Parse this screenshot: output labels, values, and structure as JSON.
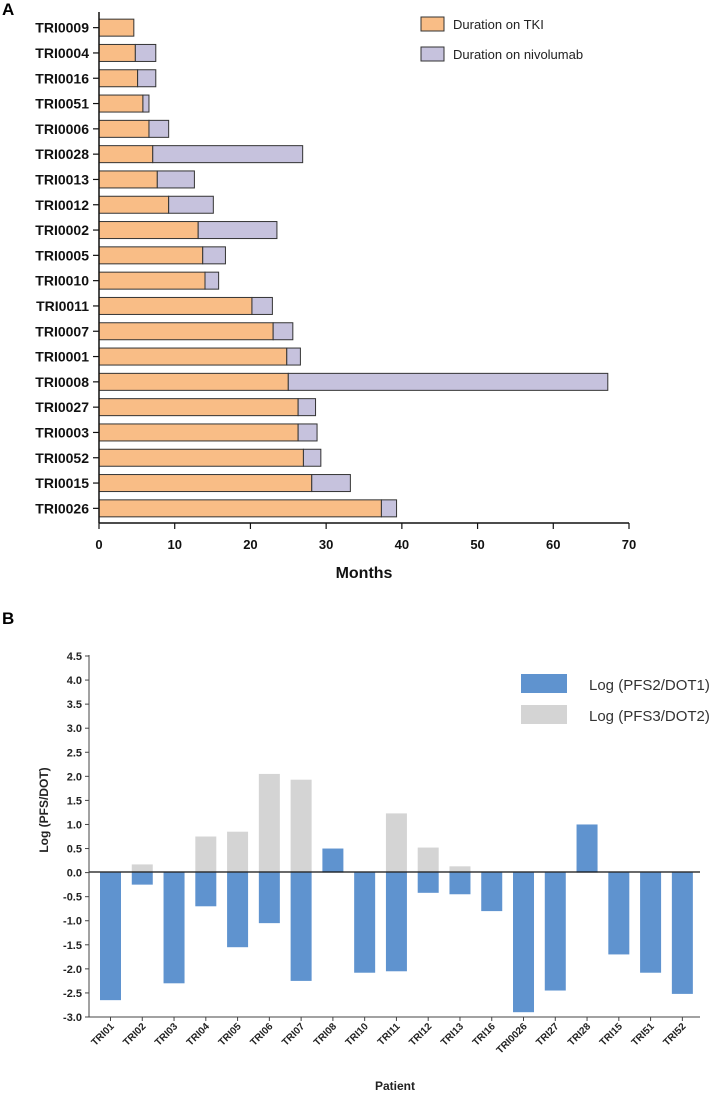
{
  "panels": {
    "a": "A",
    "b": "B"
  },
  "colors": {
    "tki": "#f9bd86",
    "nivo": "#c6c2dd",
    "pfs2": "#5f93cf",
    "pfs3": "#d4d4d4",
    "edge": "#333333"
  },
  "chart_data": [
    {
      "type": "bar",
      "orientation": "horizontal",
      "stacked": true,
      "categories": [
        "TRI0009",
        "TRI0004",
        "TRI0016",
        "TRI0051",
        "TRI0006",
        "TRI0028",
        "TRI0013",
        "TRI0012",
        "TRI0002",
        "TRI0005",
        "TRI0010",
        "TRI0011",
        "TRI0007",
        "TRI0001",
        "TRI0008",
        "TRI0027",
        "TRI0003",
        "TRI0052",
        "TRI0015",
        "TRI0026"
      ],
      "series": [
        {
          "name": "Duration on TKI",
          "values": [
            4.6,
            4.8,
            5.1,
            5.8,
            6.6,
            7.1,
            7.7,
            9.2,
            13.1,
            13.7,
            14.0,
            20.2,
            23.0,
            24.8,
            25.0,
            26.3,
            26.3,
            27.0,
            28.1,
            37.3
          ]
        },
        {
          "name": "Duration on nivolumab",
          "values": [
            0,
            2.7,
            2.4,
            0.8,
            2.6,
            19.8,
            4.9,
            5.9,
            10.4,
            3.0,
            1.8,
            2.7,
            2.6,
            1.8,
            42.2,
            2.3,
            2.5,
            2.3,
            5.1,
            2.0
          ]
        }
      ],
      "xlabel": "Months",
      "xlim": [
        0,
        70
      ],
      "xticks": [
        "0",
        "10",
        "20",
        "30",
        "40",
        "50",
        "60",
        "70"
      ],
      "legend": "top-right"
    },
    {
      "type": "bar",
      "overlapped": true,
      "categories": [
        "TRI01",
        "TRI02",
        "TRI03",
        "TRI04",
        "TRI05",
        "TRI06",
        "TRI07",
        "TRI08",
        "TRI10",
        "TRI11",
        "TRI12",
        "TRI13",
        "TRI16",
        "TRI0026",
        "TRI27",
        "TRI28",
        "TRI15",
        "TRI51",
        "TRI52"
      ],
      "series": [
        {
          "name": "Log (PFS2/DOT1)",
          "values": [
            -2.65,
            -0.25,
            -2.3,
            -0.7,
            -1.55,
            -1.05,
            -2.25,
            0.5,
            -2.08,
            -2.05,
            -0.42,
            -0.45,
            -0.8,
            -2.9,
            -2.45,
            1.0,
            -1.7,
            -2.08,
            -2.52
          ]
        },
        {
          "name": "Log (PFS3/DOT2)",
          "values": [
            null,
            0.17,
            -0.32,
            0.75,
            0.85,
            2.05,
            1.93,
            null,
            null,
            1.23,
            0.52,
            0.13,
            null,
            null,
            null,
            0.15,
            null,
            null,
            null
          ]
        }
      ],
      "xlabel": "Patient",
      "ylabel": "Log (PFS/DOT)",
      "ylim": [
        -3.0,
        4.5
      ],
      "yticks": [
        "4.5",
        "4.0",
        "3.5",
        "3.0",
        "2.5",
        "2.0",
        "1.5",
        "1.0",
        "0.5",
        "0.0",
        "-0.5",
        "-1.0",
        "-1.5",
        "-2.0",
        "-2.5",
        "-3.0"
      ],
      "legend": "top-right"
    }
  ]
}
